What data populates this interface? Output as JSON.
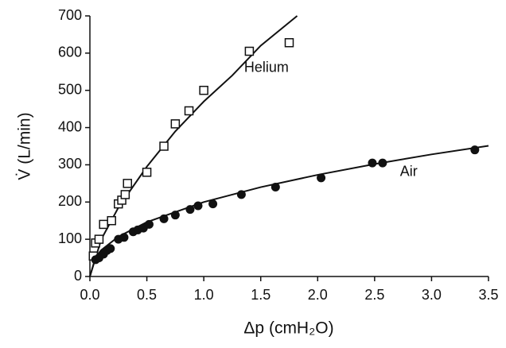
{
  "chart_data": {
    "type": "scatter",
    "x_label": "Δp (cmH₂O)",
    "y_label": "V̇ (L/min)",
    "xlim": [
      0,
      3.5
    ],
    "ylim": [
      0,
      700
    ],
    "xticks": [
      {
        "value": 0,
        "label": "0.0"
      },
      0.5,
      {
        "value": 1,
        "label": "1.0"
      },
      1.5,
      {
        "value": 2,
        "label": "2.0"
      },
      2.5,
      {
        "value": 3,
        "label": "3.0"
      },
      3.5
    ],
    "yticks": [
      0,
      100,
      200,
      300,
      400,
      500,
      600,
      700
    ],
    "series": [
      {
        "name": "Helium",
        "color": "#111111",
        "marker": "square",
        "x": [
          0.03,
          0.05,
          0.08,
          0.12,
          0.19,
          0.25,
          0.28,
          0.31,
          0.33,
          0.5,
          0.65,
          0.75,
          0.87,
          1.0,
          1.4,
          1.75
        ],
        "values": [
          55,
          90,
          100,
          140,
          150,
          195,
          205,
          220,
          250,
          280,
          350,
          410,
          445,
          500,
          605,
          628
        ],
        "fit": {
          "x": [
            0,
            0.1,
            0.25,
            0.5,
            0.75,
            1.0,
            1.25,
            1.5,
            1.82
          ],
          "values": [
            0,
            100,
            185,
            295,
            390,
            470,
            540,
            620,
            700
          ]
        }
      },
      {
        "name": "Air",
        "color": "#111111",
        "marker": "circle",
        "x": [
          0.05,
          0.08,
          0.12,
          0.15,
          0.18,
          0.25,
          0.3,
          0.38,
          0.42,
          0.47,
          0.52,
          0.65,
          0.75,
          0.88,
          0.95,
          1.08,
          1.33,
          1.63,
          2.03,
          2.48,
          2.57,
          3.38
        ],
        "values": [
          45,
          50,
          60,
          70,
          75,
          100,
          105,
          120,
          125,
          130,
          140,
          155,
          165,
          180,
          190,
          195,
          220,
          240,
          265,
          305,
          305,
          340
        ],
        "fit": {
          "x": [
            0,
            0.05,
            0.1,
            0.25,
            0.5,
            1.0,
            1.5,
            2.0,
            2.5,
            3.0,
            3.5
          ],
          "values": [
            0,
            52,
            71,
            107,
            146,
            200,
            240,
            273,
            302,
            328,
            351
          ]
        }
      }
    ]
  }
}
